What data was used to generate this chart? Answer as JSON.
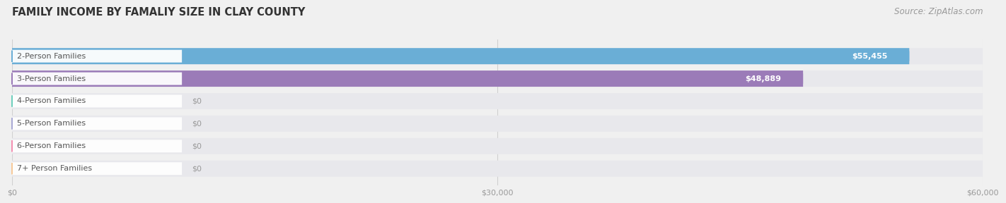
{
  "title": "FAMILY INCOME BY FAMALIY SIZE IN CLAY COUNTY",
  "source": "Source: ZipAtlas.com",
  "categories": [
    "2-Person Families",
    "3-Person Families",
    "4-Person Families",
    "5-Person Families",
    "6-Person Families",
    "7+ Person Families"
  ],
  "values": [
    55455,
    48889,
    0,
    0,
    0,
    0
  ],
  "bar_colors": [
    "#6aaed6",
    "#9b7bb8",
    "#6ecfbd",
    "#a9a9d4",
    "#f48fb1",
    "#f7c999"
  ],
  "value_labels": [
    "$55,455",
    "$48,889",
    "$0",
    "$0",
    "$0",
    "$0"
  ],
  "xlim": [
    0,
    60000
  ],
  "xticks": [
    0,
    30000,
    60000
  ],
  "xtick_labels": [
    "$0",
    "$30,000",
    "$60,000"
  ],
  "bg_color": "#f0f0f0",
  "bar_bg_color": "#e8e8ec",
  "title_fontsize": 10.5,
  "source_fontsize": 8.5,
  "label_fontsize": 8,
  "value_fontsize": 8
}
